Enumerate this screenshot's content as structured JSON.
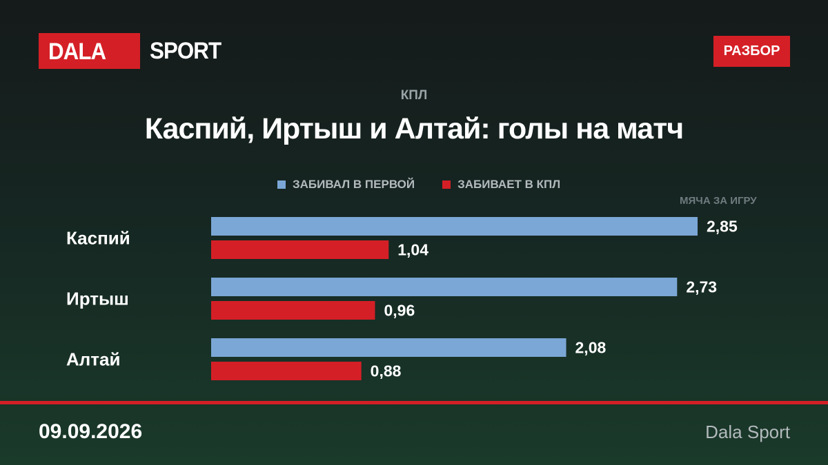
{
  "logo": {
    "part1": "DALA",
    "part2": "SPORT"
  },
  "badge": "РАЗБОР",
  "chart_data": {
    "type": "bar",
    "orientation": "horizontal",
    "subtitle": "КПЛ",
    "title": "Каспий, Иртыш и Алтай: голы на матч",
    "unit_label": "МЯЧА ЗА ИГРУ",
    "categories": [
      "Каспий",
      "Иртыш",
      "Алтай"
    ],
    "series": [
      {
        "name": "ЗАБИВАЛ В ПЕРВОЙ",
        "color": "#7ba7d6",
        "values": [
          2.85,
          2.73,
          2.08
        ],
        "labels": [
          "2,85",
          "2,73",
          "2,08"
        ]
      },
      {
        "name": "ЗАБИВАЕТ В КПЛ",
        "color": "#d51f26",
        "values": [
          1.04,
          0.96,
          0.88
        ],
        "labels": [
          "1,04",
          "0,96",
          "0,88"
        ]
      }
    ],
    "xlim": [
      0,
      2.85
    ],
    "grid": false,
    "legend_position": "top"
  },
  "footer": {
    "date": "09.09.2026",
    "source": "Dala Sport"
  }
}
